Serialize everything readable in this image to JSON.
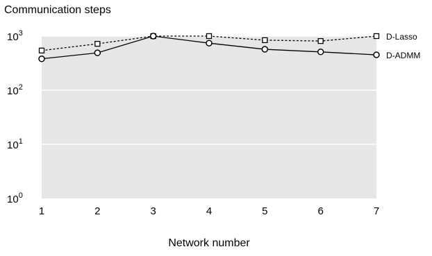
{
  "chart_data": {
    "type": "line",
    "title": "Communication steps",
    "xlabel": "Network number",
    "ylabel": "",
    "x": [
      1,
      2,
      3,
      4,
      5,
      6,
      7
    ],
    "xlim": [
      1,
      7
    ],
    "ylim": [
      1,
      1000
    ],
    "yscale": "log",
    "grid": true,
    "x_ticks": [
      "1",
      "2",
      "3",
      "4",
      "5",
      "6",
      "7"
    ],
    "y_ticks": [
      {
        "base": "10",
        "exp": "0"
      },
      {
        "base": "10",
        "exp": "1"
      },
      {
        "base": "10",
        "exp": "2"
      },
      {
        "base": "10",
        "exp": "3"
      }
    ],
    "legend": "series labels at right end of lines",
    "series": [
      {
        "name": "D-Lasso",
        "values": [
          540,
          720,
          1000,
          1000,
          840,
          810,
          1000
        ],
        "marker": "square",
        "linestyle": "dashed"
      },
      {
        "name": "D-ADMM",
        "values": [
          380,
          490,
          1000,
          740,
          570,
          510,
          450
        ],
        "marker": "circle",
        "linestyle": "solid"
      }
    ],
    "colors": {
      "plot_background": "#e6e6e6",
      "gridline": "#ffffff",
      "line": "#000000",
      "marker_fill": "#ffffff"
    }
  }
}
